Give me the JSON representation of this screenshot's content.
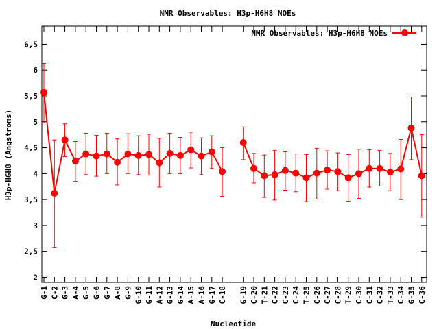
{
  "chart_data": {
    "type": "line",
    "title": "NMR Observables: H3p-H6H8 NOEs",
    "xlabel": "Nucleotide",
    "ylabel": "H3p-H6H8 (Angstroms)",
    "legend": {
      "label": "NMR Observables: H3p-H6H8 NOEs",
      "placement": "top-right"
    },
    "ylim": [
      1.9,
      6.85
    ],
    "yticks": [
      2,
      2.5,
      3,
      3.5,
      4,
      4.5,
      5,
      5.5,
      6,
      6.5
    ],
    "ytick_labels": [
      "2",
      "2,5",
      "3",
      "3,5",
      "4",
      "4,5",
      "5",
      "5,5",
      "6",
      "6,5"
    ],
    "color": "#ff0000",
    "categories": [
      "G-1",
      "C-2",
      "G-3",
      "A-4",
      "G-5",
      "G-6",
      "G-7",
      "A-8",
      "G-9",
      "G-10",
      "G-11",
      "A-12",
      "G-13",
      "G-14",
      "A-15",
      "A-16",
      "G-17",
      "C-18",
      "",
      "G-19",
      "C-20",
      "T-21",
      "C-22",
      "C-23",
      "C-24",
      "T-25",
      "C-26",
      "C-27",
      "C-28",
      "T-29",
      "C-30",
      "C-31",
      "C-32",
      "T-33",
      "C-34",
      "G-35",
      "C-36"
    ],
    "values": [
      5.57,
      3.62,
      4.65,
      4.24,
      4.38,
      4.34,
      4.38,
      4.22,
      4.38,
      4.35,
      4.37,
      4.21,
      4.39,
      4.35,
      4.46,
      4.34,
      4.42,
      4.04,
      null,
      4.6,
      4.1,
      3.96,
      3.98,
      4.06,
      4.01,
      3.92,
      4.01,
      4.07,
      4.04,
      3.92,
      4.0,
      4.1,
      4.1,
      4.03,
      4.09,
      4.88,
      3.96
    ],
    "err_low": [
      4.98,
      2.57,
      4.33,
      3.85,
      3.98,
      3.95,
      4.0,
      3.78,
      4.0,
      3.98,
      3.97,
      3.74,
      4.0,
      4.0,
      4.11,
      3.98,
      4.1,
      3.56,
      null,
      4.27,
      3.82,
      3.54,
      3.49,
      3.68,
      3.65,
      3.46,
      3.51,
      3.7,
      3.67,
      3.47,
      3.52,
      3.74,
      3.76,
      3.67,
      3.5,
      4.27,
      3.16
    ],
    "err_high": [
      6.13,
      4.65,
      4.96,
      4.62,
      4.78,
      4.74,
      4.78,
      4.67,
      4.77,
      4.73,
      4.76,
      4.68,
      4.78,
      4.7,
      4.8,
      4.69,
      4.73,
      4.5,
      null,
      4.9,
      4.39,
      4.36,
      4.45,
      4.42,
      4.38,
      4.37,
      4.49,
      4.44,
      4.4,
      4.37,
      4.47,
      4.46,
      4.45,
      4.39,
      4.66,
      5.48,
      4.75
    ],
    "grid": false
  }
}
